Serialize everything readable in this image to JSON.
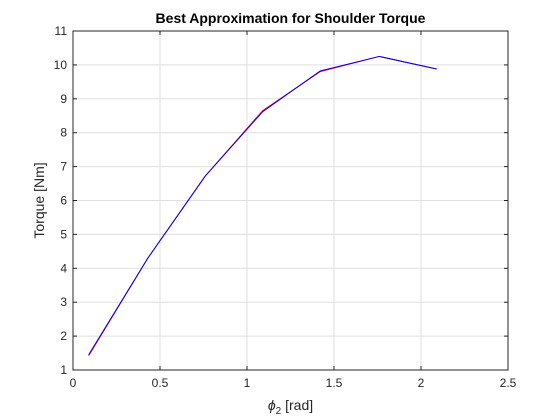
{
  "chart_data": {
    "type": "line",
    "title": "Best Approximation for Shoulder Torque",
    "xlabel": {
      "symbol": "ϕ",
      "subscript": "2",
      "unit": " [rad]"
    },
    "ylabel": "Torque [Nm]",
    "xlim": [
      0,
      2.5
    ],
    "ylim": [
      1,
      11
    ],
    "xticks": [
      0,
      0.5,
      1,
      1.5,
      2,
      2.5
    ],
    "yticks": [
      1,
      2,
      3,
      4,
      5,
      6,
      7,
      8,
      9,
      10,
      11
    ],
    "xtick_labels": [
      "0",
      "0.5",
      "1",
      "1.5",
      "2",
      "2.5"
    ],
    "ytick_labels": [
      "1",
      "2",
      "3",
      "4",
      "5",
      "6",
      "7",
      "8",
      "9",
      "10",
      "11"
    ],
    "grid": true,
    "series": [
      {
        "color": "#ff0000",
        "x": [
          0.09,
          0.43,
          0.76,
          1.09,
          1.42,
          1.76,
          2.09
        ],
        "y": [
          1.42,
          4.3,
          6.72,
          8.65,
          9.8,
          10.25,
          9.88
        ]
      },
      {
        "color": "#0000ff",
        "x": [
          0.09,
          0.43,
          0.76,
          1.09,
          1.42,
          1.76,
          2.09
        ],
        "y": [
          1.45,
          4.3,
          6.72,
          8.62,
          9.82,
          10.25,
          9.88
        ]
      }
    ],
    "colors": {
      "axis": "#262626",
      "grid": "#dfdfdf",
      "background": "#ffffff"
    }
  }
}
